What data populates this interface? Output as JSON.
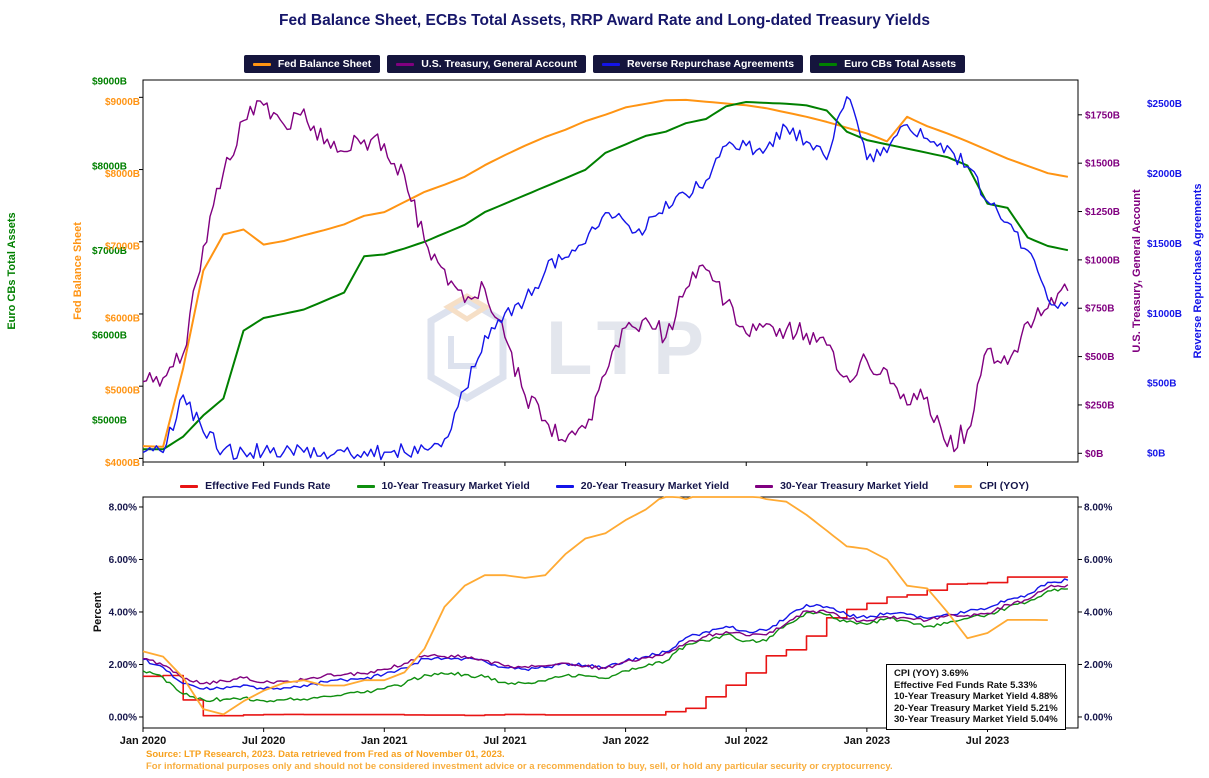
{
  "title": "Fed Balance Sheet, ECBs Total Assets, RRP Award Rate and Long-dated Treasury Yields",
  "watermark_text": "LTP",
  "footer": {
    "line1": "Source: LTP Research, 2023. Data retrieved from Fred as of November 01, 2023.",
    "line2": "For informational purposes only and should not be considered investment advice or a recommendation to buy, sell, or hold any particular security or cryptocurrency."
  },
  "annotation": {
    "lines": [
      "CPI (YOY) 3.69%",
      "Effective Fed Funds Rate 5.33%",
      "10-Year Treasury Market Yield 4.88%",
      "20-Year Treasury Market Yield 5.21%",
      "30-Year Treasury Market Yield 5.04%"
    ]
  },
  "chart_data": [
    {
      "type": "line",
      "panel": "top",
      "x_unit": "months since Jan 2020",
      "xlim": [
        0,
        46.5
      ],
      "show_x_labels": false,
      "x_ticks": [
        {
          "m": 0,
          "label": "Jan 2020"
        },
        {
          "m": 6,
          "label": "Jul 2020"
        },
        {
          "m": 12,
          "label": "Jan 2021"
        },
        {
          "m": 18,
          "label": "Jul 2021"
        },
        {
          "m": 24,
          "label": "Jan 2022"
        },
        {
          "m": 30,
          "label": "Jul 2022"
        },
        {
          "m": 36,
          "label": "Jan 2023"
        },
        {
          "m": 42,
          "label": "Jul 2023"
        }
      ],
      "legend": [
        {
          "label": "Fed Balance Sheet",
          "color": "#ff9413"
        },
        {
          "label": "U.S. Treasury, General Account",
          "color": "#800080"
        },
        {
          "label": "Reverse Repurchase Agreements",
          "color": "#1414e8"
        },
        {
          "label": "Euro CBs Total Assets",
          "color": "#008000"
        }
      ],
      "axes": {
        "euro": {
          "title": "Euro CBs Total Assets",
          "color": "#008000",
          "lim": [
            4550,
            9060
          ],
          "ticks": [
            {
              "v": 9000,
              "label": "$9000B"
            },
            {
              "v": 8000,
              "label": "$8000B"
            },
            {
              "v": 7000,
              "label": "$7000B"
            },
            {
              "v": 6000,
              "label": "$6000B"
            },
            {
              "v": 5000,
              "label": "$5000B"
            }
          ]
        },
        "fed": {
          "title": "Fed Balance Sheet",
          "color": "#ff9413",
          "lim": [
            3950,
            9240
          ],
          "ticks": [
            {
              "v": 9000,
              "label": "$9000B"
            },
            {
              "v": 8000,
              "label": "$8000B"
            },
            {
              "v": 7000,
              "label": "$7000B"
            },
            {
              "v": 6000,
              "label": "$6000B"
            },
            {
              "v": 5000,
              "label": "$5000B"
            },
            {
              "v": 4000,
              "label": "$4000B"
            }
          ]
        },
        "tga": {
          "title": "U.S. Treasury, General Account",
          "color": "#800080",
          "lim": [
            -45,
            1930
          ],
          "ticks": [
            {
              "v": 1750,
              "label": "$1750B"
            },
            {
              "v": 1500,
              "label": "$1500B"
            },
            {
              "v": 1250,
              "label": "$1250B"
            },
            {
              "v": 1000,
              "label": "$1000B"
            },
            {
              "v": 750,
              "label": "$750B"
            },
            {
              "v": 500,
              "label": "$500B"
            },
            {
              "v": 250,
              "label": "$250B"
            },
            {
              "v": 0,
              "label": "$0B"
            }
          ]
        },
        "rrp": {
          "title": "Reverse Repurchase Agreements",
          "color": "#1414e8",
          "lim": [
            -65,
            2670
          ],
          "ticks": [
            {
              "v": 2500,
              "label": "$2500B"
            },
            {
              "v": 2000,
              "label": "$2000B"
            },
            {
              "v": 1500,
              "label": "$1500B"
            },
            {
              "v": 1000,
              "label": "$1000B"
            },
            {
              "v": 500,
              "label": "$500B"
            },
            {
              "v": 0,
              "label": "$0B"
            }
          ]
        }
      },
      "series": [
        {
          "name": "Fed Balance Sheet",
          "axis": "fed",
          "color": "#ff9413",
          "width": 2,
          "noise": 0,
          "interp": "linear",
          "monthly": [
            4170,
            4160,
            5250,
            6600,
            7100,
            7170,
            6960,
            7010,
            7090,
            7160,
            7240,
            7360,
            7410,
            7550,
            7690,
            7790,
            7900,
            8060,
            8200,
            8330,
            8450,
            8550,
            8670,
            8760,
            8860,
            8910,
            8960,
            8965,
            8940,
            8915,
            8890,
            8850,
            8790,
            8730,
            8660,
            8580,
            8500,
            8390,
            8730,
            8600,
            8500,
            8390,
            8270,
            8150,
            8050,
            7950,
            7900
          ]
        },
        {
          "name": "Euro CBs Total Assets",
          "axis": "euro",
          "color": "#008000",
          "width": 2,
          "noise": 0,
          "interp": "linear",
          "monthly": [
            4700,
            4700,
            4850,
            5100,
            5300,
            6100,
            6250,
            6300,
            6350,
            6450,
            6550,
            6980,
            7000,
            7070,
            7150,
            7250,
            7350,
            7500,
            7600,
            7700,
            7800,
            7900,
            8000,
            8200,
            8300,
            8400,
            8450,
            8550,
            8600,
            8750,
            8800,
            8790,
            8780,
            8760,
            8700,
            8450,
            8350,
            8300,
            8250,
            8200,
            8150,
            8050,
            7600,
            7550,
            7200,
            7100,
            7050
          ]
        },
        {
          "name": "U.S. Treasury, General Account",
          "axis": "tga",
          "color": "#800080",
          "width": 1.4,
          "noise": 55,
          "interp": "linear",
          "monthly": [
            370,
            390,
            515,
            1070,
            1450,
            1720,
            1800,
            1700,
            1780,
            1600,
            1560,
            1620,
            1600,
            1440,
            1100,
            950,
            780,
            850,
            600,
            300,
            170,
            60,
            130,
            410,
            650,
            700,
            600,
            850,
            950,
            780,
            620,
            670,
            640,
            620,
            560,
            400,
            480,
            430,
            250,
            290,
            35,
            120,
            540,
            460,
            680,
            750,
            840
          ]
        },
        {
          "name": "Reverse Repurchase Agreements",
          "axis": "rrp",
          "color": "#1414e8",
          "width": 1.4,
          "noise": 60,
          "interp": "linear",
          "monthly": [
            3,
            3,
            415,
            150,
            20,
            8,
            8,
            8,
            5,
            5,
            8,
            10,
            5,
            5,
            30,
            100,
            450,
            840,
            1000,
            1100,
            1300,
            1400,
            1500,
            1720,
            1650,
            1600,
            1800,
            1850,
            1950,
            2200,
            2200,
            2180,
            2330,
            2230,
            2100,
            2550,
            2100,
            2150,
            2350,
            2250,
            2200,
            2050,
            1800,
            1650,
            1450,
            1100,
            1080
          ]
        }
      ]
    },
    {
      "type": "line",
      "panel": "bottom",
      "x_unit": "months since Jan 2020",
      "xlim": [
        0,
        46.5
      ],
      "show_x_labels": true,
      "x_ticks": [
        {
          "m": 0,
          "label": "Jan 2020"
        },
        {
          "m": 6,
          "label": "Jul 2020"
        },
        {
          "m": 12,
          "label": "Jan 2021"
        },
        {
          "m": 18,
          "label": "Jul 2021"
        },
        {
          "m": 24,
          "label": "Jan 2022"
        },
        {
          "m": 30,
          "label": "Jul 2022"
        },
        {
          "m": 36,
          "label": "Jan 2023"
        },
        {
          "m": 42,
          "label": "Jul 2023"
        }
      ],
      "legend": [
        {
          "label": "Effective Fed Funds Rate",
          "color": "#e81414"
        },
        {
          "label": "10-Year Treasury Market Yield",
          "color": "#0f8f0f"
        },
        {
          "label": "20-Year Treasury Market Yield",
          "color": "#1414e8"
        },
        {
          "label": "30-Year Treasury Market Yield",
          "color": "#800080"
        },
        {
          "label": "CPI (YOY)",
          "color": "#ffaa33"
        }
      ],
      "axes": {
        "pctL": {
          "title": "Percent",
          "color": "#15154a",
          "lim": [
            -0.42,
            8.38
          ],
          "ticks": [
            {
              "v": 8,
              "label": "8.00%"
            },
            {
              "v": 6,
              "label": "6.00%"
            },
            {
              "v": 4,
              "label": "4.00%"
            },
            {
              "v": 2,
              "label": "2.00%"
            },
            {
              "v": 0,
              "label": "0.00%"
            }
          ]
        },
        "pctR": {
          "title": "",
          "color": "#15154a",
          "lim": [
            -0.42,
            8.38
          ],
          "ticks": [
            {
              "v": 8,
              "label": "8.00%"
            },
            {
              "v": 6,
              "label": "6.00%"
            },
            {
              "v": 4,
              "label": "4.00%"
            },
            {
              "v": 2,
              "label": "2.00%"
            },
            {
              "v": 0,
              "label": "0.00%"
            }
          ]
        }
      },
      "series": [
        {
          "name": "Effective Fed Funds Rate",
          "axis": "pctL",
          "color": "#e81414",
          "width": 1.6,
          "noise": 0,
          "interp": "step",
          "monthly": [
            1.55,
            1.58,
            0.65,
            0.05,
            0.05,
            0.08,
            0.09,
            0.1,
            0.09,
            0.09,
            0.09,
            0.09,
            0.09,
            0.08,
            0.07,
            0.07,
            0.06,
            0.08,
            0.1,
            0.09,
            0.08,
            0.08,
            0.08,
            0.08,
            0.08,
            0.08,
            0.2,
            0.33,
            0.77,
            1.21,
            1.68,
            2.33,
            2.56,
            3.08,
            3.78,
            4.1,
            4.33,
            4.57,
            4.65,
            4.83,
            5.06,
            5.08,
            5.12,
            5.33,
            5.33,
            5.33,
            5.33
          ]
        },
        {
          "name": "10-Year Treasury Market Yield",
          "axis": "pctL",
          "color": "#0f8f0f",
          "width": 1.4,
          "noise": 0.07,
          "interp": "linear",
          "monthly": [
            1.76,
            1.5,
            0.87,
            0.66,
            0.67,
            0.73,
            0.62,
            0.65,
            0.68,
            0.79,
            0.87,
            0.93,
            1.08,
            1.26,
            1.61,
            1.64,
            1.62,
            1.52,
            1.32,
            1.28,
            1.37,
            1.58,
            1.56,
            1.47,
            1.76,
            1.93,
            2.13,
            2.75,
            2.9,
            3.14,
            2.9,
            2.9,
            3.52,
            3.98,
            3.89,
            3.62,
            3.53,
            3.75,
            3.66,
            3.46,
            3.57,
            3.75,
            3.9,
            4.17,
            4.38,
            4.8,
            4.88
          ]
        },
        {
          "name": "20-Year Treasury Market Yield",
          "axis": "pctL",
          "color": "#1414e8",
          "width": 1.4,
          "noise": 0.07,
          "interp": "linear",
          "monthly": [
            2.19,
            1.89,
            1.27,
            1.06,
            1.07,
            1.22,
            1.06,
            1.11,
            1.21,
            1.34,
            1.41,
            1.45,
            1.63,
            1.87,
            2.22,
            2.23,
            2.23,
            2.12,
            1.88,
            1.82,
            1.88,
            2.05,
            1.97,
            1.88,
            2.14,
            2.3,
            2.48,
            3.02,
            3.25,
            3.45,
            3.27,
            3.3,
            3.78,
            4.28,
            4.2,
            3.9,
            3.77,
            3.96,
            3.91,
            3.76,
            3.92,
            4.03,
            4.14,
            4.47,
            4.67,
            5.13,
            5.21
          ]
        },
        {
          "name": "30-Year Treasury Market Yield",
          "axis": "pctL",
          "color": "#800080",
          "width": 1.4,
          "noise": 0.07,
          "interp": "linear",
          "monthly": [
            2.22,
            1.97,
            1.46,
            1.27,
            1.38,
            1.49,
            1.31,
            1.36,
            1.42,
            1.57,
            1.62,
            1.66,
            1.82,
            2.04,
            2.34,
            2.3,
            2.32,
            2.16,
            1.94,
            1.92,
            1.94,
            2.05,
            1.93,
            1.85,
            2.11,
            2.25,
            2.45,
            2.81,
            3.07,
            3.25,
            3.1,
            3.13,
            3.56,
            4.04,
            4.0,
            3.74,
            3.66,
            3.82,
            3.77,
            3.68,
            3.86,
            3.87,
            3.95,
            4.28,
            4.47,
            4.93,
            5.04
          ]
        },
        {
          "name": "CPI (YOY)",
          "axis": "pctL",
          "color": "#ffaa33",
          "width": 1.8,
          "noise": 0,
          "interp": "linear",
          "monthly": [
            2.5,
            2.3,
            1.5,
            0.3,
            0.1,
            0.6,
            1.0,
            1.3,
            1.4,
            1.2,
            1.2,
            1.4,
            1.4,
            1.7,
            2.6,
            4.2,
            5.0,
            5.4,
            5.4,
            5.3,
            5.4,
            6.2,
            6.8,
            7.0,
            7.5,
            7.9,
            8.5,
            8.3,
            8.6,
            9.1,
            8.5,
            8.3,
            8.2,
            7.7,
            7.1,
            6.5,
            6.4,
            6.0,
            5.0,
            4.9,
            4.0,
            3.0,
            3.2,
            3.7,
            3.7,
            3.69
          ]
        }
      ]
    }
  ]
}
